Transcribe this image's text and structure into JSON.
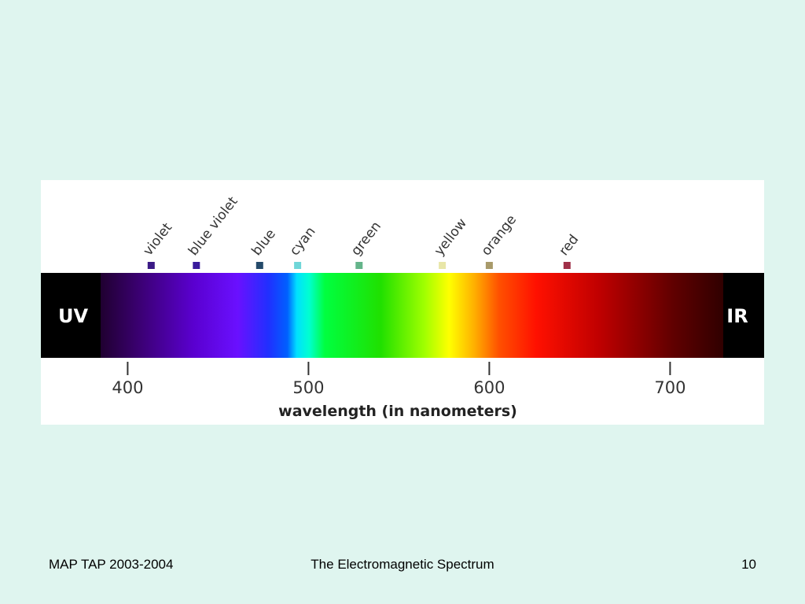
{
  "slide": {
    "figure": {
      "regions": [
        "UV",
        "IR"
      ],
      "colors": [
        {
          "label": "violet",
          "wavelength": 413,
          "color": "#3b1a86"
        },
        {
          "label": "blue violet",
          "wavelength": 438,
          "color": "#3a1c9c"
        },
        {
          "label": "blue",
          "wavelength": 473,
          "color": "#244a6a"
        },
        {
          "label": "cyan",
          "wavelength": 494,
          "color": "#6fd6d8"
        },
        {
          "label": "green",
          "wavelength": 528,
          "color": "#64b48a"
        },
        {
          "label": "yellow",
          "wavelength": 574,
          "color": "#e8e6a8"
        },
        {
          "label": "orange",
          "wavelength": 600,
          "color": "#a89a6a"
        },
        {
          "label": "red",
          "wavelength": 643,
          "color": "#a03048"
        }
      ],
      "axis": {
        "label": "wavelength (in nanometers)",
        "xlim": [
          352,
          752
        ],
        "ticks": [
          400,
          500,
          600,
          700
        ]
      }
    },
    "footer": {
      "left": "MAP TAP 2003-2004",
      "center": "The Electromagnetic Spectrum",
      "page": 10
    }
  }
}
